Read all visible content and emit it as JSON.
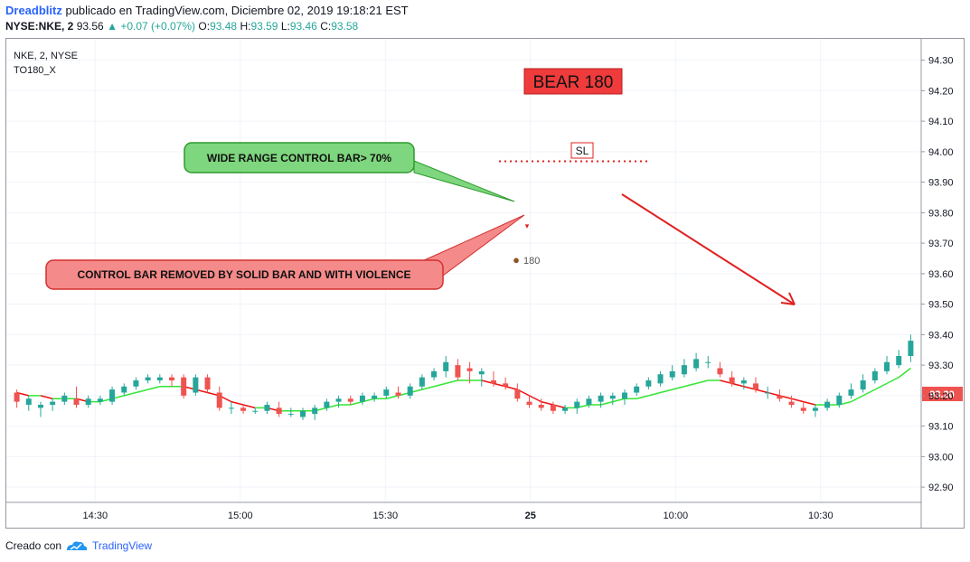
{
  "header": {
    "author": "Dreadblitz",
    "published": "publicado en TradingView.com, Diciembre 02, 2019 19:18:21 EST",
    "symbol": "NYSE:NKE, 2",
    "last": "93.56",
    "change": "+0.07 (+0.07%)",
    "o_label": "O:",
    "o": "93.48",
    "h_label": "H:",
    "h": "93.59",
    "l_label": "L:",
    "l": "93.46",
    "c_label": "C:",
    "c": "93.58"
  },
  "legend": {
    "line1": "NKE, 2, NYSE",
    "line2": "TO180_X"
  },
  "annotations": {
    "bear_label": "BEAR 180",
    "sl_label": "SL",
    "callout_top": "WIDE RANGE CONTROL BAR> 70%",
    "callout_bottom": "CONTROL BAR REMOVED BY SOLID BAR AND WITH VIOLENCE",
    "marker_label": "180"
  },
  "price_badge": "93.20",
  "footer": {
    "created": "Creado con",
    "brand": "TradingView"
  },
  "colors": {
    "up": "#26a69a",
    "down": "#ef5350",
    "ma_up": "#33e633",
    "ma_down": "#f01010",
    "control_up": "#0e8a0e",
    "control_down": "#e01010"
  },
  "chart_data": {
    "type": "candlestick",
    "ylim": [
      92.85,
      94.37
    ],
    "yticks": [
      "94.30",
      "94.20",
      "94.10",
      "94.00",
      "93.90",
      "93.80",
      "93.70",
      "93.60",
      "93.50",
      "93.40",
      "93.30",
      "93.20",
      "93.10",
      "93.00",
      "92.90"
    ],
    "xticks": [
      {
        "label": "14:30",
        "index": 6
      },
      {
        "label": "15:00",
        "index": 16
      },
      {
        "label": "15:30",
        "index": 26
      },
      {
        "label": "25",
        "index": 36
      },
      {
        "label": "10:00",
        "index": 46
      },
      {
        "label": "10:30",
        "index": 56
      }
    ],
    "candles": [
      [
        93.21,
        93.22,
        93.16,
        93.18
      ],
      [
        93.17,
        93.2,
        93.15,
        93.19
      ],
      [
        93.16,
        93.18,
        93.13,
        93.17
      ],
      [
        93.17,
        93.19,
        93.15,
        93.18
      ],
      [
        93.18,
        93.21,
        93.17,
        93.2
      ],
      [
        93.19,
        93.23,
        93.16,
        93.17
      ],
      [
        93.17,
        93.2,
        93.16,
        93.19
      ],
      [
        93.18,
        93.2,
        93.17,
        93.19
      ],
      [
        93.18,
        93.23,
        93.17,
        93.22
      ],
      [
        93.21,
        93.24,
        93.2,
        93.23
      ],
      [
        93.23,
        93.26,
        93.22,
        93.25
      ],
      [
        93.25,
        93.27,
        93.24,
        93.26
      ],
      [
        93.25,
        93.27,
        93.24,
        93.26
      ],
      [
        93.26,
        93.27,
        93.23,
        93.25
      ],
      [
        93.26,
        93.27,
        93.19,
        93.2
      ],
      [
        93.21,
        93.27,
        93.2,
        93.26
      ],
      [
        93.26,
        93.27,
        93.21,
        93.22
      ],
      [
        93.21,
        93.23,
        93.15,
        93.16
      ],
      [
        93.16,
        93.18,
        93.14,
        93.16
      ],
      [
        93.16,
        93.17,
        93.14,
        93.15
      ],
      [
        93.15,
        93.16,
        93.14,
        93.15
      ],
      [
        93.15,
        93.18,
        93.14,
        93.17
      ],
      [
        93.16,
        93.18,
        93.13,
        93.14
      ],
      [
        93.14,
        93.16,
        93.13,
        93.14
      ],
      [
        93.13,
        93.16,
        93.12,
        93.15
      ],
      [
        93.14,
        93.17,
        93.12,
        93.16
      ],
      [
        93.16,
        93.19,
        93.15,
        93.18
      ],
      [
        93.18,
        93.2,
        93.16,
        93.19
      ],
      [
        93.19,
        93.2,
        93.17,
        93.18
      ],
      [
        93.18,
        93.21,
        93.17,
        93.2
      ],
      [
        93.19,
        93.21,
        93.18,
        93.2
      ],
      [
        93.2,
        93.23,
        93.19,
        93.22
      ],
      [
        93.21,
        93.23,
        93.19,
        93.2
      ],
      [
        93.2,
        93.24,
        93.19,
        93.23
      ],
      [
        93.23,
        93.27,
        93.22,
        93.26
      ],
      [
        93.26,
        93.29,
        93.25,
        93.28
      ],
      [
        93.28,
        93.33,
        93.26,
        93.31
      ],
      [
        93.3,
        93.32,
        93.25,
        93.26
      ],
      [
        93.29,
        93.31,
        93.24,
        93.28
      ],
      [
        93.27,
        93.29,
        93.23,
        93.28
      ],
      [
        93.25,
        93.28,
        93.23,
        93.24
      ],
      [
        93.24,
        93.26,
        93.22,
        93.23
      ],
      [
        93.22,
        93.24,
        93.18,
        93.19
      ],
      [
        93.18,
        93.2,
        93.16,
        93.17
      ],
      [
        93.17,
        93.19,
        93.15,
        93.16
      ],
      [
        93.17,
        93.18,
        93.14,
        93.15
      ],
      [
        93.15,
        93.17,
        93.14,
        93.16
      ],
      [
        93.16,
        93.19,
        93.14,
        93.18
      ],
      [
        93.17,
        93.2,
        93.16,
        93.19
      ],
      [
        93.18,
        93.21,
        93.16,
        93.2
      ],
      [
        93.19,
        93.21,
        93.17,
        93.2
      ],
      [
        93.19,
        93.22,
        93.17,
        93.21
      ],
      [
        93.21,
        93.24,
        93.2,
        93.23
      ],
      [
        93.23,
        93.26,
        93.22,
        93.25
      ],
      [
        93.24,
        93.28,
        93.23,
        93.27
      ],
      [
        93.26,
        93.3,
        93.25,
        93.28
      ],
      [
        93.27,
        93.32,
        93.26,
        93.3
      ],
      [
        93.29,
        93.34,
        93.28,
        93.32
      ],
      [
        93.31,
        93.33,
        93.29,
        93.31
      ],
      [
        93.29,
        93.31,
        93.26,
        93.27
      ],
      [
        93.26,
        93.28,
        93.23,
        93.24
      ],
      [
        93.24,
        93.26,
        93.22,
        93.25
      ],
      [
        93.24,
        93.26,
        93.21,
        93.22
      ],
      [
        93.21,
        93.23,
        93.19,
        93.21
      ],
      [
        93.2,
        93.22,
        93.18,
        93.19
      ],
      [
        93.18,
        93.2,
        93.16,
        93.17
      ],
      [
        93.16,
        93.18,
        93.14,
        93.15
      ],
      [
        93.15,
        93.17,
        93.13,
        93.16
      ],
      [
        93.16,
        93.19,
        93.15,
        93.18
      ],
      [
        93.17,
        93.21,
        93.16,
        93.2
      ],
      [
        93.2,
        93.24,
        93.19,
        93.22
      ],
      [
        93.22,
        93.27,
        93.21,
        93.25
      ],
      [
        93.25,
        93.29,
        93.24,
        93.28
      ],
      [
        93.28,
        93.33,
        93.27,
        93.31
      ],
      [
        93.3,
        93.35,
        93.29,
        93.33
      ],
      [
        93.33,
        93.4,
        93.31,
        93.38
      ]
    ],
    "ma": [
      93.21,
      93.2,
      93.2,
      93.19,
      93.19,
      93.19,
      93.18,
      93.18,
      93.19,
      93.2,
      93.21,
      93.22,
      93.23,
      93.23,
      93.23,
      93.22,
      93.21,
      93.2,
      93.18,
      93.17,
      93.16,
      93.16,
      93.15,
      93.15,
      93.15,
      93.15,
      93.16,
      93.17,
      93.17,
      93.18,
      93.19,
      93.19,
      93.2,
      93.21,
      93.22,
      93.23,
      93.24,
      93.25,
      93.25,
      93.25,
      93.24,
      93.23,
      93.22,
      93.2,
      93.18,
      93.17,
      93.16,
      93.16,
      93.17,
      93.17,
      93.18,
      93.19,
      93.19,
      93.2,
      93.21,
      93.22,
      93.23,
      93.24,
      93.25,
      93.25,
      93.24,
      93.23,
      93.22,
      93.21,
      93.2,
      93.19,
      93.18,
      93.17,
      93.17,
      93.17,
      93.18,
      93.2,
      93.22,
      93.24,
      93.26,
      93.29
    ]
  }
}
